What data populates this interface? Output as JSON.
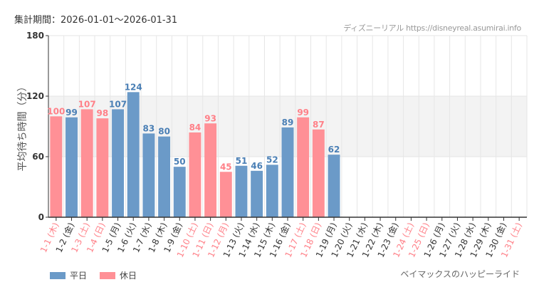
{
  "header": {
    "period": "集計期間：2026-01-01～2026-01-31",
    "credit": "ディズニーリアル https://disneyreal.asumirai.info"
  },
  "attraction": "ベイマックスのハッピーライド",
  "colors": {
    "weekday": "#6b9ac8",
    "holiday": "#ff9096",
    "holiday_label": "#ff8088",
    "band": "#f3f3f3",
    "grid": "#e6e6e6"
  },
  "legend": [
    {
      "label": "平日",
      "key": "weekday"
    },
    {
      "label": "休日",
      "key": "holiday"
    }
  ],
  "chart_data": {
    "type": "bar",
    "ylabel": "平均待ち時間（分）",
    "ylim": [
      0,
      180
    ],
    "yticks": [
      0,
      60,
      120,
      180
    ],
    "band": [
      60,
      120
    ],
    "grid": true,
    "legend_position": "bottom-left",
    "categories": [
      "1-1 (木)",
      "1-2 (金)",
      "1-3 (土)",
      "1-4 (日)",
      "1-5 (月)",
      "1-6 (火)",
      "1-7 (水)",
      "1-8 (木)",
      "1-9 (金)",
      "1-10 (土)",
      "1-11 (日)",
      "1-12 (月)",
      "1-13 (火)",
      "1-14 (水)",
      "1-15 (木)",
      "1-16 (金)",
      "1-17 (土)",
      "1-18 (日)",
      "1-19 (月)",
      "1-20 (火)",
      "1-21 (水)",
      "1-22 (木)",
      "1-23 (金)",
      "1-24 (土)",
      "1-25 (日)",
      "1-26 (月)",
      "1-27 (火)",
      "1-28 (水)",
      "1-29 (木)",
      "1-30 (金)",
      "1-31 (土)"
    ],
    "holiday": [
      true,
      false,
      true,
      true,
      false,
      false,
      false,
      false,
      false,
      true,
      true,
      true,
      false,
      false,
      false,
      false,
      true,
      true,
      false,
      false,
      false,
      false,
      false,
      true,
      true,
      false,
      false,
      false,
      false,
      false,
      true
    ],
    "values": [
      100,
      99,
      107,
      98,
      107,
      124,
      83,
      80,
      50,
      84,
      93,
      45,
      51,
      46,
      52,
      89,
      99,
      87,
      62,
      null,
      null,
      null,
      null,
      null,
      null,
      null,
      null,
      null,
      null,
      null,
      null
    ]
  }
}
